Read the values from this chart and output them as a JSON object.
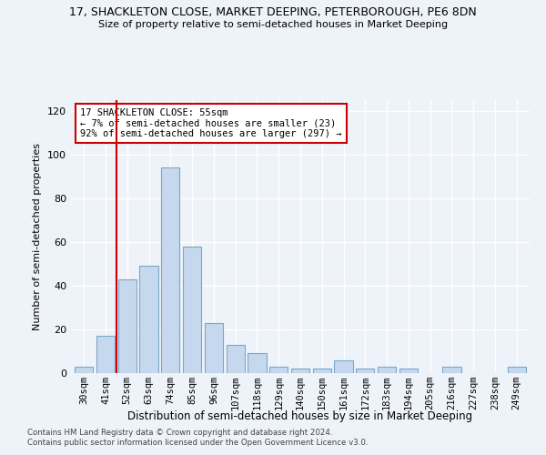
{
  "title1": "17, SHACKLETON CLOSE, MARKET DEEPING, PETERBOROUGH, PE6 8DN",
  "title2": "Size of property relative to semi-detached houses in Market Deeping",
  "xlabel": "Distribution of semi-detached houses by size in Market Deeping",
  "ylabel": "Number of semi-detached properties",
  "categories": [
    "30sqm",
    "41sqm",
    "52sqm",
    "63sqm",
    "74sqm",
    "85sqm",
    "96sqm",
    "107sqm",
    "118sqm",
    "129sqm",
    "140sqm",
    "150sqm",
    "161sqm",
    "172sqm",
    "183sqm",
    "194sqm",
    "205sqm",
    "216sqm",
    "227sqm",
    "238sqm",
    "249sqm"
  ],
  "values": [
    3,
    17,
    43,
    49,
    94,
    58,
    23,
    13,
    9,
    3,
    2,
    2,
    6,
    2,
    3,
    2,
    0,
    3,
    0,
    0,
    3
  ],
  "bar_color": "#c5d8ed",
  "bar_edge_color": "#7ba7c9",
  "background_color": "#eef2f9",
  "grid_color": "#ffffff",
  "annotation_box_text": "17 SHACKLETON CLOSE: 55sqm\n← 7% of semi-detached houses are smaller (23)\n92% of semi-detached houses are larger (297) →",
  "vline_x": 1.5,
  "vline_color": "#cc0000",
  "annotation_box_color": "#ffffff",
  "annotation_box_edge_color": "#cc0000",
  "ylim": [
    0,
    125
  ],
  "yticks": [
    0,
    20,
    40,
    60,
    80,
    100,
    120
  ],
  "footer1": "Contains HM Land Registry data © Crown copyright and database right 2024.",
  "footer2": "Contains public sector information licensed under the Open Government Licence v3.0."
}
